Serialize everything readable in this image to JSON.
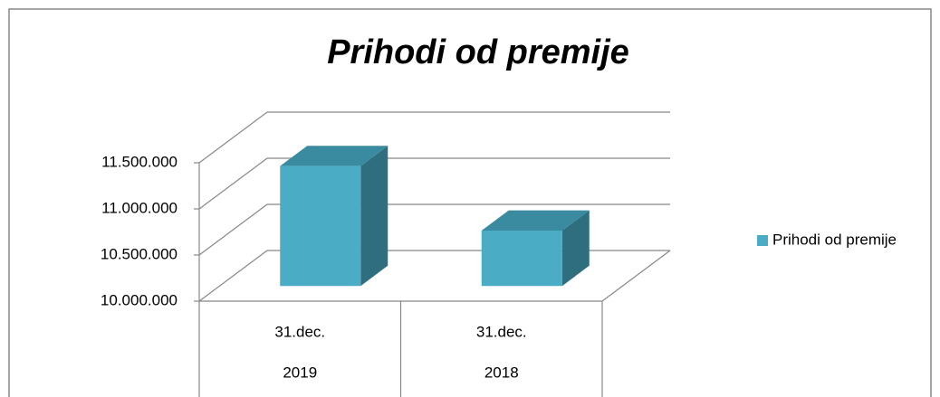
{
  "chart_data": {
    "type": "bar3d",
    "title": "Prihodi od premije",
    "categories": [
      [
        "31.dec.",
        "2019"
      ],
      [
        "31.dec.",
        "2018"
      ]
    ],
    "series": [
      {
        "name": "Prihodi od premije",
        "color": "#4bacc6",
        "values": [
          11300000,
          10600000
        ]
      }
    ],
    "ylim": [
      10000000,
      11500000
    ],
    "yticks": [
      {
        "value": 10000000,
        "label": "10.000.000"
      },
      {
        "value": 10500000,
        "label": "10.500.000"
      },
      {
        "value": 11000000,
        "label": "11.000.000"
      },
      {
        "value": 11500000,
        "label": "11.500.000"
      }
    ],
    "grid": true,
    "legend": "right"
  }
}
